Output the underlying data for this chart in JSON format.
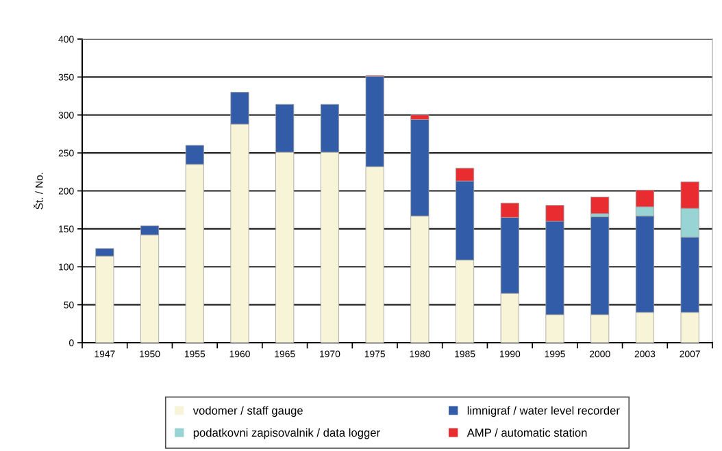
{
  "chart_data": {
    "type": "bar",
    "stacked": true,
    "ylabel": "Št. / No.",
    "categories": [
      "1947",
      "1950",
      "1955",
      "1960",
      "1965",
      "1970",
      "1975",
      "1980",
      "1985",
      "1990",
      "1995",
      "2000",
      "2003",
      "2007"
    ],
    "series": [
      {
        "name": "vodomer / staff gauge",
        "color": "#f8f4d8",
        "values": [
          114,
          142,
          235,
          288,
          251,
          251,
          232,
          167,
          109,
          65,
          37,
          37,
          40,
          40
        ]
      },
      {
        "name": "limnigraf / water level recorder",
        "color": "#325ca8",
        "values": [
          10,
          12,
          25,
          42,
          63,
          63,
          119,
          127,
          104,
          100,
          123,
          129,
          127,
          99
        ]
      },
      {
        "name": "podatkovni zapisovalnik / data logger",
        "color": "#98d4d4",
        "values": [
          null,
          null,
          null,
          null,
          null,
          null,
          null,
          null,
          null,
          null,
          null,
          4,
          12,
          38
        ]
      },
      {
        "name": "AMP / automatic station",
        "color": "#e82c30",
        "values": [
          null,
          null,
          null,
          null,
          null,
          null,
          1,
          6,
          17,
          19,
          21,
          22,
          22,
          35
        ]
      }
    ],
    "ylim": [
      0,
      400
    ],
    "yticks": [
      0,
      50,
      100,
      150,
      200,
      250,
      300,
      350,
      400
    ],
    "grid": "y",
    "legend": "bottom"
  }
}
